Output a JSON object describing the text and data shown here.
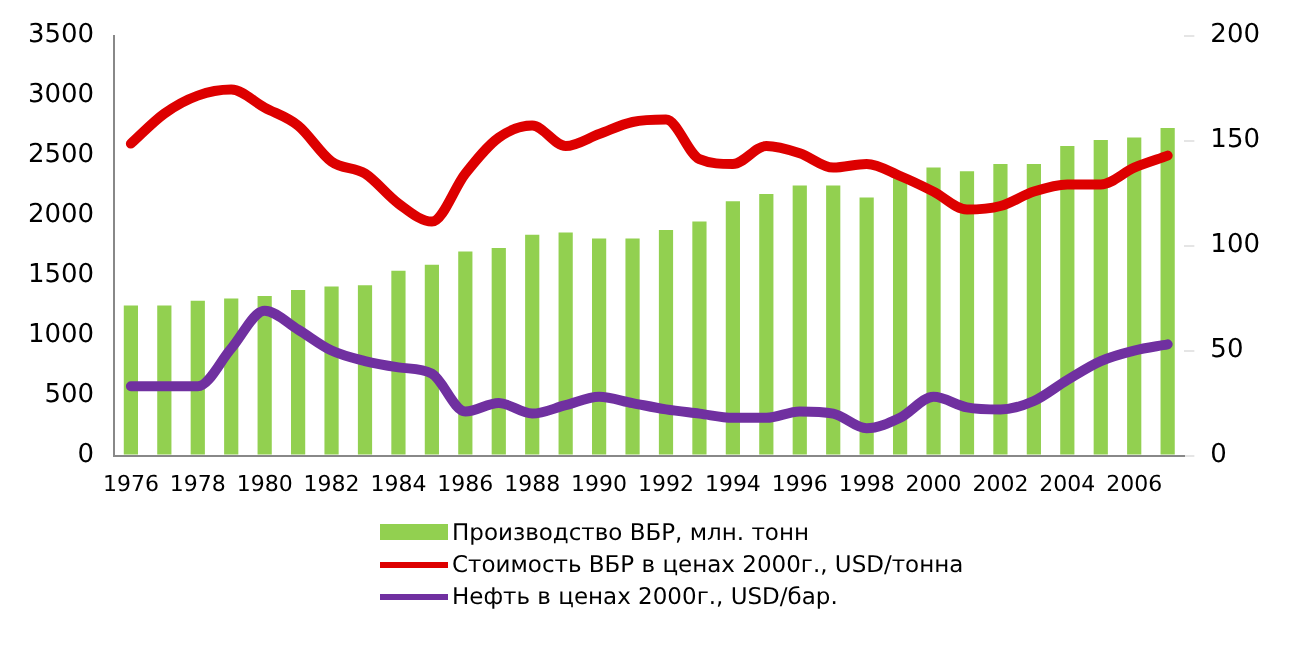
{
  "chart_data": {
    "type": "bar",
    "categories": [
      "1976",
      null,
      "1978",
      null,
      "1980",
      null,
      "1982",
      null,
      "1984",
      null,
      "1986",
      null,
      "1988",
      null,
      "1990",
      null,
      "1992",
      null,
      "1994",
      null,
      "1996",
      null,
      "1998",
      null,
      "2000",
      null,
      "2002",
      null,
      "2004",
      null,
      "2006",
      null
    ],
    "series": [
      {
        "name": "Производство ВБР, млн. тонн",
        "color": "#92d050",
        "values": [
          1250,
          1250,
          1290,
          1310,
          1330,
          1380,
          1410,
          1420,
          1540,
          1590,
          1700,
          1730,
          1840,
          1860,
          1810,
          1810,
          1880,
          1950,
          2120,
          2180,
          2250,
          2250,
          2150,
          2320,
          2400,
          2370,
          2430,
          2430,
          2580,
          2630,
          2650,
          2730
        ]
      },
      {
        "name": "Стоимость ВБР в ценах 2000г., USD/тонна",
        "type": "line",
        "color": "#dd0000",
        "values": [
          2600,
          2850,
          3000,
          3050,
          2900,
          2750,
          2450,
          2350,
          2100,
          1950,
          2350,
          2650,
          2750,
          2580,
          2680,
          2780,
          2800,
          2470,
          2430,
          2580,
          2520,
          2400,
          2430,
          2330,
          2200,
          2050,
          2080,
          2200,
          2260,
          2260,
          2400,
          2500
        ]
      },
      {
        "name": "Нефть в ценах 2000г., USD/бар.",
        "type": "line",
        "axis": "y2",
        "color": "#7030a0",
        "values": [
          33,
          33,
          33,
          51,
          69,
          60,
          50,
          45,
          42,
          39,
          21,
          25,
          20,
          24,
          28,
          25,
          22,
          20,
          18,
          18,
          21,
          20,
          13,
          18,
          28,
          23,
          22,
          26,
          36,
          45,
          50,
          53
        ]
      }
    ],
    "ylim": [
      0,
      3500
    ],
    "yticks": [
      0,
      500,
      1000,
      1500,
      2000,
      2500,
      3000,
      3500
    ],
    "y2lim": [
      0,
      200
    ],
    "y2ticks": [
      0,
      50,
      100,
      150,
      200
    ],
    "grid": false,
    "legend": "bottom",
    "marker": "none",
    "line_style": "solid"
  }
}
